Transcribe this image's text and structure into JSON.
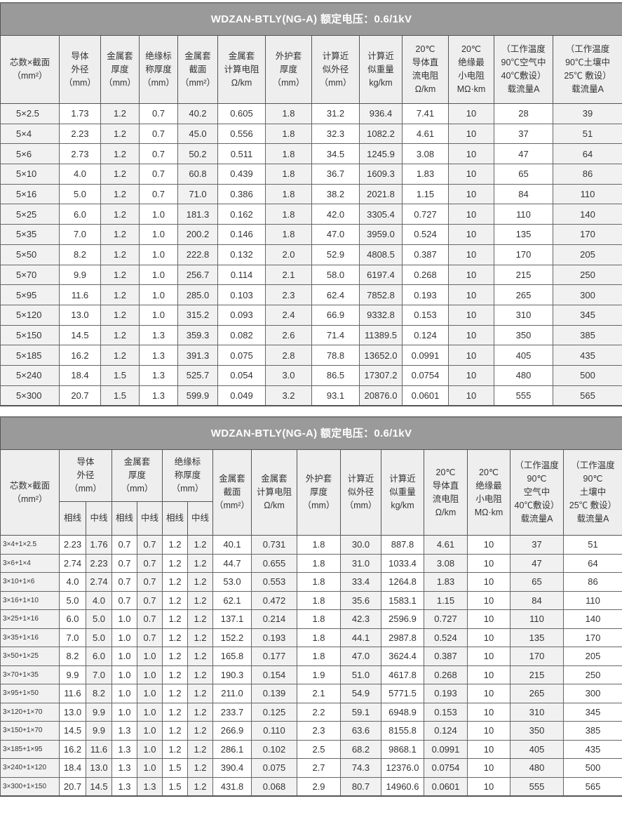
{
  "table1": {
    "title": "WDZAN-BTLY(NG-A)   额定电压：0.6/1kV",
    "headers": [
      "芯数×截面\n（mm²）",
      "导体\n外径\n（mm）",
      "金属套\n厚度\n（mm）",
      "绝缘标\n称厚度\n（mm）",
      "金属套\n截面\n（mm²）",
      "金属套\n计算电阻\nΩ/km",
      "外护套\n厚度\n（mm）",
      "计算近\n似外径\n（mm）",
      "计算近\n似重量\nkg/km",
      "20℃\n导体直\n流电阻\nΩ/km",
      "20℃\n绝缘最\n小电阻\nMΩ·km",
      "（工作温度\n90℃空气中\n40℃敷设）\n载流量A",
      "（工作温度\n90℃土壤中\n25℃ 敷设）\n载流量A"
    ],
    "rows": [
      [
        "5×2.5",
        "1.73",
        "1.2",
        "0.7",
        "40.2",
        "0.605",
        "1.8",
        "31.2",
        "936.4",
        "7.41",
        "10",
        "28",
        "39"
      ],
      [
        "5×4",
        "2.23",
        "1.2",
        "0.7",
        "45.0",
        "0.556",
        "1.8",
        "32.3",
        "1082.2",
        "4.61",
        "10",
        "37",
        "51"
      ],
      [
        "5×6",
        "2.73",
        "1.2",
        "0.7",
        "50.2",
        "0.511",
        "1.8",
        "34.5",
        "1245.9",
        "3.08",
        "10",
        "47",
        "64"
      ],
      [
        "5×10",
        "4.0",
        "1.2",
        "0.7",
        "60.8",
        "0.439",
        "1.8",
        "36.7",
        "1609.3",
        "1.83",
        "10",
        "65",
        "86"
      ],
      [
        "5×16",
        "5.0",
        "1.2",
        "0.7",
        "71.0",
        "0.386",
        "1.8",
        "38.2",
        "2021.8",
        "1.15",
        "10",
        "84",
        "110"
      ],
      [
        "5×25",
        "6.0",
        "1.2",
        "1.0",
        "181.3",
        "0.162",
        "1.8",
        "42.0",
        "3305.4",
        "0.727",
        "10",
        "110",
        "140"
      ],
      [
        "5×35",
        "7.0",
        "1.2",
        "1.0",
        "200.2",
        "0.146",
        "1.8",
        "47.0",
        "3959.0",
        "0.524",
        "10",
        "135",
        "170"
      ],
      [
        "5×50",
        "8.2",
        "1.2",
        "1.0",
        "222.8",
        "0.132",
        "2.0",
        "52.9",
        "4808.5",
        "0.387",
        "10",
        "170",
        "205"
      ],
      [
        "5×70",
        "9.9",
        "1.2",
        "1.0",
        "256.7",
        "0.114",
        "2.1",
        "58.0",
        "6197.4",
        "0.268",
        "10",
        "215",
        "250"
      ],
      [
        "5×95",
        "11.6",
        "1.2",
        "1.0",
        "285.0",
        "0.103",
        "2.3",
        "62.4",
        "7852.8",
        "0.193",
        "10",
        "265",
        "300"
      ],
      [
        "5×120",
        "13.0",
        "1.2",
        "1.0",
        "315.2",
        "0.093",
        "2.4",
        "66.9",
        "9332.8",
        "0.153",
        "10",
        "310",
        "345"
      ],
      [
        "5×150",
        "14.5",
        "1.2",
        "1.3",
        "359.3",
        "0.082",
        "2.6",
        "71.4",
        "11389.5",
        "0.124",
        "10",
        "350",
        "385"
      ],
      [
        "5×185",
        "16.2",
        "1.2",
        "1.3",
        "391.3",
        "0.075",
        "2.8",
        "78.8",
        "13652.0",
        "0.0991",
        "10",
        "405",
        "435"
      ],
      [
        "5×240",
        "18.4",
        "1.5",
        "1.3",
        "525.7",
        "0.054",
        "3.0",
        "86.5",
        "17307.2",
        "0.0754",
        "10",
        "480",
        "500"
      ],
      [
        "5×300",
        "20.7",
        "1.5",
        "1.3",
        "599.9",
        "0.049",
        "3.2",
        "93.1",
        "20876.0",
        "0.0601",
        "10",
        "555",
        "565"
      ]
    ]
  },
  "table2": {
    "title": "WDZAN-BTLY(NG-A)   额定电压：0.6/1kV",
    "headers_top": [
      "芯数×截面\n（mm²）",
      "导体\n外径\n（mm）",
      "金属套\n厚度\n（mm）",
      "绝缘标\n称厚度\n（mm）",
      "金属套\n截面\n（mm²）",
      "金属套\n计算电阻\nΩ/km",
      "外护套\n厚度\n（mm）",
      "计算近\n似外径\n（mm）",
      "计算近\n似重量\nkg/km",
      "20℃\n导体直\n流电阻\nΩ/km",
      "20℃\n绝缘最\n小电阻\nMΩ·km",
      "（工作温度\n90℃\n空气中\n40℃敷设）\n载流量A",
      "（工作温度\n90℃\n土壤中\n25℃ 敷设）\n载流量A"
    ],
    "headers_sub": [
      "相线",
      "中线",
      "相线",
      "中线",
      "相线",
      "中线"
    ],
    "rows": [
      [
        "3×4+1×2.5",
        "2.23",
        "1.76",
        "0.7",
        "0.7",
        "1.2",
        "1.2",
        "40.1",
        "0.731",
        "1.8",
        "30.0",
        "887.8",
        "4.61",
        "10",
        "37",
        "51"
      ],
      [
        "3×6+1×4",
        "2.74",
        "2.23",
        "0.7",
        "0.7",
        "1.2",
        "1.2",
        "44.7",
        "0.655",
        "1.8",
        "31.0",
        "1033.4",
        "3.08",
        "10",
        "47",
        "64"
      ],
      [
        "3×10+1×6",
        "4.0",
        "2.74",
        "0.7",
        "0.7",
        "1.2",
        "1.2",
        "53.0",
        "0.553",
        "1.8",
        "33.4",
        "1264.8",
        "1.83",
        "10",
        "65",
        "86"
      ],
      [
        "3×16+1×10",
        "5.0",
        "4.0",
        "0.7",
        "0.7",
        "1.2",
        "1.2",
        "62.1",
        "0.472",
        "1.8",
        "35.6",
        "1583.1",
        "1.15",
        "10",
        "84",
        "110"
      ],
      [
        "3×25+1×16",
        "6.0",
        "5.0",
        "1.0",
        "0.7",
        "1.2",
        "1.2",
        "137.1",
        "0.214",
        "1.8",
        "42.3",
        "2596.9",
        "0.727",
        "10",
        "110",
        "140"
      ],
      [
        "3×35+1×16",
        "7.0",
        "5.0",
        "1.0",
        "0.7",
        "1.2",
        "1.2",
        "152.2",
        "0.193",
        "1.8",
        "44.1",
        "2987.8",
        "0.524",
        "10",
        "135",
        "170"
      ],
      [
        "3×50+1×25",
        "8.2",
        "6.0",
        "1.0",
        "1.0",
        "1.2",
        "1.2",
        "165.8",
        "0.177",
        "1.8",
        "47.0",
        "3624.4",
        "0.387",
        "10",
        "170",
        "205"
      ],
      [
        "3×70+1×35",
        "9.9",
        "7.0",
        "1.0",
        "1.0",
        "1.2",
        "1.2",
        "190.3",
        "0.154",
        "1.9",
        "51.0",
        "4617.8",
        "0.268",
        "10",
        "215",
        "250"
      ],
      [
        "3×95+1×50",
        "11.6",
        "8.2",
        "1.0",
        "1.0",
        "1.2",
        "1.2",
        "211.0",
        "0.139",
        "2.1",
        "54.9",
        "5771.5",
        "0.193",
        "10",
        "265",
        "300"
      ],
      [
        "3×120+1×70",
        "13.0",
        "9.9",
        "1.0",
        "1.0",
        "1.2",
        "1.2",
        "233.7",
        "0.125",
        "2.2",
        "59.1",
        "6948.9",
        "0.153",
        "10",
        "310",
        "345"
      ],
      [
        "3×150+1×70",
        "14.5",
        "9.9",
        "1.3",
        "1.0",
        "1.2",
        "1.2",
        "266.9",
        "0.110",
        "2.3",
        "63.6",
        "8155.8",
        "0.124",
        "10",
        "350",
        "385"
      ],
      [
        "3×185+1×95",
        "16.2",
        "11.6",
        "1.3",
        "1.0",
        "1.2",
        "1.2",
        "286.1",
        "0.102",
        "2.5",
        "68.2",
        "9868.1",
        "0.0991",
        "10",
        "405",
        "435"
      ],
      [
        "3×240+1×120",
        "18.4",
        "13.0",
        "1.3",
        "1.0",
        "1.5",
        "1.2",
        "390.4",
        "0.075",
        "2.7",
        "74.3",
        "12376.0",
        "0.0754",
        "10",
        "480",
        "500"
      ],
      [
        "3×300+1×150",
        "20.7",
        "14.5",
        "1.3",
        "1.3",
        "1.5",
        "1.2",
        "431.8",
        "0.068",
        "2.9",
        "80.7",
        "14960.6",
        "0.0601",
        "10",
        "555",
        "565"
      ]
    ]
  }
}
